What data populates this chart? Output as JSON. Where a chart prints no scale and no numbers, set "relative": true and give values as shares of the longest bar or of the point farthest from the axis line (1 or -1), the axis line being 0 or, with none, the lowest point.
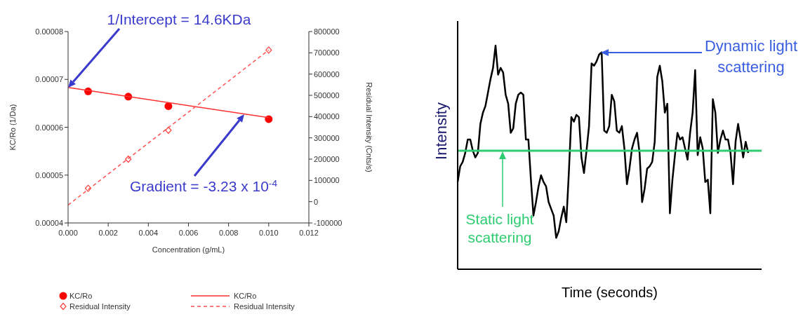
{
  "chart_data": [
    {
      "type": "scatter",
      "xlabel": "Concentration (g/mL)",
      "ylabel": "KC/Ro (1/Da)",
      "y2label": "Residual Intensity (Cnts/s)",
      "xlim": [
        0,
        0.012
      ],
      "xticks": [
        {
          "value": 0,
          "label": "0.000"
        },
        {
          "value": 0.002,
          "label": "0.002"
        },
        {
          "value": 0.004,
          "label": "0.004"
        },
        {
          "value": 0.006,
          "label": "0.006"
        },
        {
          "value": 0.008,
          "label": "0.008"
        },
        {
          "value": 0.01,
          "label": "0.010"
        },
        {
          "value": 0.012,
          "label": "0.012"
        }
      ],
      "ylim": [
        4e-05,
        8e-05
      ],
      "yticks": [
        {
          "value": 4e-05,
          "label": "0.00004"
        },
        {
          "value": 5e-05,
          "label": "0.00005"
        },
        {
          "value": 6e-05,
          "label": "0.00006"
        },
        {
          "value": 7e-05,
          "label": "0.00007"
        },
        {
          "value": 8e-05,
          "label": "0.00008"
        }
      ],
      "y2lim": [
        -100000,
        800000
      ],
      "y2ticks": [
        -100000,
        0,
        100000,
        200000,
        300000,
        400000,
        500000,
        600000,
        700000,
        800000
      ],
      "legend": "bottom",
      "series": [
        {
          "name": "KC/Ro",
          "marker": "circle",
          "color": "#ff0000",
          "x": [
            0.001,
            0.003,
            0.005,
            0.01
          ],
          "values": [
            6.75e-05,
            6.64e-05,
            6.44e-05,
            6.17e-05
          ]
        },
        {
          "name": "Residual Intensity",
          "marker": "diamond",
          "axis": "y2",
          "color": "#ff4040",
          "x": [
            0.001,
            0.003,
            0.005,
            0.01
          ],
          "values": [
            63000,
            200000,
            336000,
            713000
          ]
        },
        {
          "name": "KC/Ro",
          "type": "line",
          "line_style": "solid",
          "color": "#ff3030",
          "x": [
            0,
            0.01
          ],
          "values": [
            6.83e-05,
            6.2e-05
          ]
        },
        {
          "name": "Residual Intensity",
          "type": "line",
          "line_style": "dashed",
          "axis": "y2",
          "color": "#ff5050",
          "x": [
            0,
            0.01
          ],
          "values": [
            -16000,
            713000
          ]
        }
      ],
      "annotations": [
        "1/Intercept = 14.6KDa",
        "Gradient = -3.23 x 10$^{-4}$"
      ]
    },
    {
      "type": "line",
      "relative": true,
      "xlabel": "Time (seconds)",
      "ylabel": "Intensity",
      "categories": [
        null,
        null,
        null,
        null,
        null,
        null,
        null,
        null,
        null,
        null,
        null,
        null,
        null,
        null,
        null,
        null,
        null,
        null,
        null,
        null,
        null,
        null,
        null,
        null,
        null,
        null,
        null,
        null,
        null,
        null,
        null,
        null,
        null,
        null,
        null,
        null,
        null,
        null,
        null,
        null,
        null,
        null,
        null,
        null,
        null,
        null,
        null,
        null,
        null,
        null,
        null,
        null,
        null,
        null,
        null,
        null,
        null,
        null,
        null,
        null,
        null,
        null,
        null,
        null,
        null,
        null,
        null,
        null,
        null,
        null,
        null,
        null,
        null,
        null,
        null,
        null,
        null,
        null,
        null,
        null,
        null,
        null,
        null,
        null,
        null,
        null,
        null,
        null,
        null,
        null,
        null,
        null,
        null,
        null,
        null,
        null,
        null,
        null,
        null,
        null,
        null,
        null,
        null,
        null,
        null,
        null,
        null,
        null,
        null,
        null,
        null,
        null,
        null,
        null,
        null,
        null
      ],
      "series": [
        {
          "color": "#000000",
          "values": [
            0.39,
            0.46,
            0.48,
            0.52,
            0.58,
            0.58,
            0.53,
            0.5,
            0.52,
            0.65,
            0.7,
            0.73,
            0.79,
            0.85,
            0.9,
            1.0,
            0.87,
            0.9,
            0.88,
            0.78,
            0.74,
            0.61,
            0.63,
            0.74,
            0.78,
            0.79,
            0.78,
            0.58,
            0.58,
            0.4,
            0.24,
            0.3,
            0.37,
            0.42,
            0.39,
            0.37,
            0.3,
            0.27,
            0.24,
            0.14,
            0.17,
            0.23,
            0.28,
            0.21,
            0.43,
            0.68,
            0.66,
            0.69,
            0.68,
            0.5,
            0.43,
            0.53,
            0.64,
            0.92,
            0.91,
            0.93,
            0.96,
            0.97,
            0.62,
            0.61,
            0.64,
            0.78,
            0.75,
            0.62,
            0.61,
            0.64,
            0.54,
            0.38,
            0.45,
            0.54,
            0.58,
            0.61,
            0.52,
            0.3,
            0.36,
            0.45,
            0.46,
            0.48,
            0.57,
            0.86,
            0.91,
            0.84,
            0.7,
            0.74,
            0.25,
            0.4,
            0.51,
            0.61,
            0.58,
            0.59,
            0.54,
            0.49,
            0.61,
            0.7,
            0.89,
            0.51,
            0.59,
            0.54,
            0.39,
            0.4,
            0.25,
            0.76,
            0.7,
            0.52,
            0.58,
            0.62,
            0.58,
            0.58,
            0.52,
            0.38,
            0.57,
            0.65,
            0.58,
            0.5,
            0.57,
            0.52
          ]
        }
      ],
      "ref_lines": [
        {
          "axis": "y",
          "value": 0.53,
          "label": "Static light scattering",
          "color": "#2ecc71"
        }
      ],
      "annotations": [
        "Dynamic light scattering"
      ]
    }
  ]
}
